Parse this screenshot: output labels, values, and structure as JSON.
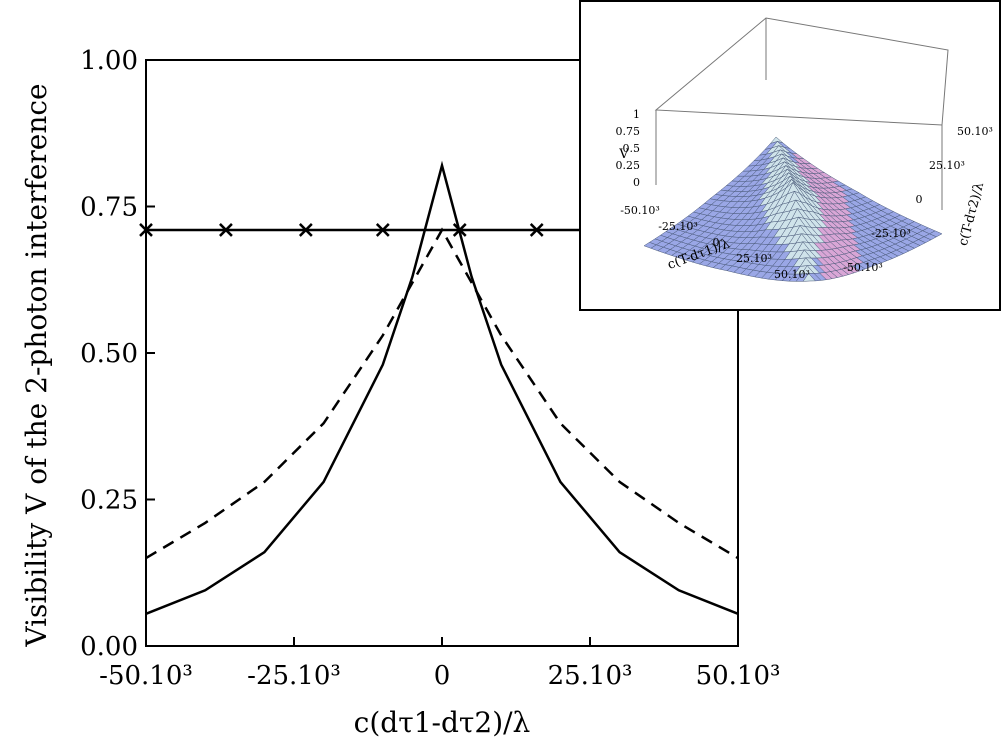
{
  "chart_data": [
    {
      "type": "line",
      "title": "",
      "ylabel": "Visibility V of the 2-photon interference",
      "xlabel": "c(dτ1-dτ2)/λ",
      "xlim": [
        -50000,
        50000
      ],
      "ylim": [
        0,
        1
      ],
      "x_ticks": [
        {
          "value": -50000,
          "label": "-50.10³"
        },
        {
          "value": -25000,
          "label": "-25.10³"
        },
        {
          "value": 0,
          "label": "0"
        },
        {
          "value": 25000,
          "label": "25.10³"
        },
        {
          "value": 50000,
          "label": "50.10³"
        }
      ],
      "y_ticks": [
        {
          "value": 0.0,
          "label": "0.00"
        },
        {
          "value": 0.25,
          "label": "0.25"
        },
        {
          "value": 0.5,
          "label": "0.50"
        },
        {
          "value": 0.75,
          "label": "0.75"
        },
        {
          "value": 1.0,
          "label": "1.00"
        }
      ],
      "series": [
        {
          "name": "solid",
          "style": "solid",
          "x": [
            -50000,
            -40000,
            -30000,
            -20000,
            -10000,
            -5000,
            0,
            5000,
            10000,
            20000,
            30000,
            40000,
            50000
          ],
          "values": [
            0.055,
            0.095,
            0.16,
            0.28,
            0.48,
            0.63,
            0.82,
            0.63,
            0.48,
            0.28,
            0.16,
            0.095,
            0.055
          ]
        },
        {
          "name": "dashed",
          "style": "dashed",
          "x": [
            -50000,
            -40000,
            -30000,
            -20000,
            -10000,
            -5000,
            0,
            5000,
            10000,
            20000,
            30000,
            40000,
            50000
          ],
          "values": [
            0.15,
            0.21,
            0.28,
            0.38,
            0.53,
            0.62,
            0.71,
            0.62,
            0.53,
            0.38,
            0.28,
            0.21,
            0.15
          ]
        },
        {
          "name": "crosses",
          "style": "solid-with-x-markers",
          "x": [
            -50000,
            -36500,
            -23000,
            -10000,
            3000,
            16000,
            50000
          ],
          "values": [
            0.71,
            0.71,
            0.71,
            0.71,
            0.71,
            0.71,
            0.71
          ],
          "marker_x": [
            -50000,
            -36500,
            -23000,
            -10000,
            3000,
            16000
          ]
        }
      ]
    },
    {
      "type": "surface3d",
      "title": "",
      "zlabel": "V",
      "xlabel": "c(T-dτ1)/λ",
      "ylabel": "c(T-dτ2)/λ",
      "zlim": [
        0,
        1
      ],
      "z_ticks": [
        "1",
        "0.75",
        "0.5",
        "0.25",
        "0"
      ],
      "x_ticks": [
        "-50.10³",
        "-25.10³",
        "0",
        "25.10³",
        "50.10³"
      ],
      "y_ticks": [
        "50.10³",
        "25.10³",
        "0",
        "-25.10³",
        "-50.10³"
      ]
    }
  ],
  "colors": {
    "line": "#000000",
    "surface_light": "#cfe3ea",
    "surface_mid": "#9aa7e6",
    "surface_pink": "#d9a6d6",
    "surface_grid": "#4a5a7a"
  }
}
